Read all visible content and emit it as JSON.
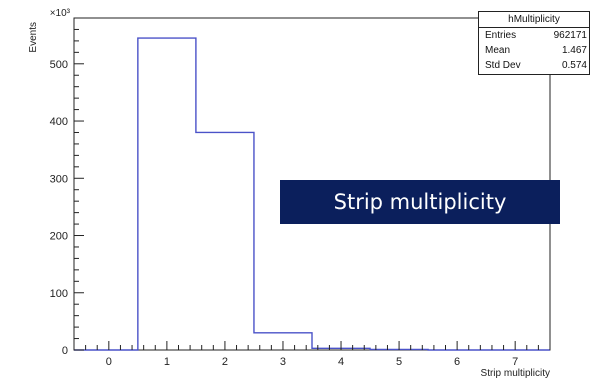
{
  "chart_data": {
    "type": "histogram",
    "title": "",
    "xlabel": "Strip multiplicity",
    "ylabel": "Events",
    "y_scale_label": "×10³",
    "xlim": [
      -0.6,
      7.6
    ],
    "ylim": [
      0,
      580
    ],
    "x_ticks": [
      0,
      1,
      2,
      3,
      4,
      5,
      6,
      7
    ],
    "y_ticks": [
      0,
      100,
      200,
      300,
      400,
      500
    ],
    "bins": [
      {
        "low": 0.5,
        "high": 1.5,
        "value": 545
      },
      {
        "low": 1.5,
        "high": 2.5,
        "value": 380
      },
      {
        "low": 2.5,
        "high": 3.5,
        "value": 30
      },
      {
        "low": 3.5,
        "high": 4.5,
        "value": 3
      },
      {
        "low": 4.5,
        "high": 5.5,
        "value": 1
      }
    ],
    "line_color": "#4a52c8",
    "stats": {
      "title": "hMultiplicity",
      "rows": [
        {
          "label": "Entries",
          "value": "962171"
        },
        {
          "label": "Mean",
          "value": "1.467"
        },
        {
          "label": "Std Dev",
          "value": "0.574"
        }
      ]
    }
  },
  "overlay_label": "Strip multiplicity"
}
